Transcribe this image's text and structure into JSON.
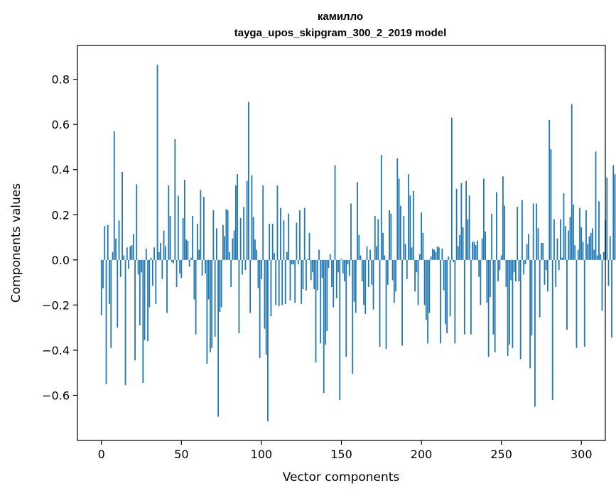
{
  "chart_data": {
    "type": "bar",
    "title": "камилло",
    "subtitle": "tayga_upos_skipgram_300_2_2019 model",
    "xlabel": "Vector components",
    "ylabel": "Components values",
    "xlim": [
      -15,
      315
    ],
    "ylim": [
      -0.8,
      0.95
    ],
    "xticks": [
      0,
      50,
      100,
      150,
      200,
      250,
      300
    ],
    "xtick_labels": [
      "0",
      "50",
      "100",
      "150",
      "200",
      "250",
      "300"
    ],
    "yticks": [
      -0.6,
      -0.4,
      -0.2,
      0.0,
      0.2,
      0.4,
      0.6,
      0.8
    ],
    "ytick_labels": [
      "−0.6",
      "−0.4",
      "−0.2",
      "0.0",
      "0.2",
      "0.4",
      "0.6",
      "0.8"
    ],
    "bar_color": "#1f77b4",
    "values": [
      -0.245,
      -0.125,
      0.15,
      -0.55,
      0.155,
      -0.195,
      -0.39,
      0.035,
      0.57,
      0.095,
      -0.3,
      0.175,
      -0.075,
      0.39,
      0.02,
      -0.555,
      0.055,
      -0.04,
      0.06,
      0.065,
      0.115,
      -0.445,
      0.335,
      -0.065,
      -0.29,
      -0.055,
      -0.545,
      -0.355,
      0.05,
      -0.36,
      -0.21,
      0.01,
      -0.115,
      0.055,
      -0.195,
      0.865,
      0.035,
      0.075,
      -0.085,
      0.13,
      0.06,
      -0.235,
      0.33,
      0.195,
      -0.01,
      -0.015,
      0.535,
      -0.12,
      0.285,
      -0.06,
      -0.08,
      0.185,
      0.355,
      0.09,
      0.085,
      -0.03,
      0.01,
      0.195,
      -0.175,
      -0.33,
      0.16,
      0.045,
      0.31,
      -0.07,
      0.28,
      -0.06,
      -0.46,
      -0.175,
      -0.41,
      -0.39,
      0.22,
      -0.34,
      0.14,
      -0.695,
      -0.23,
      -0.21,
      0.155,
      0.105,
      0.225,
      0.22,
      0.035,
      -0.12,
      0.095,
      0.13,
      0.33,
      0.38,
      -0.325,
      0.185,
      -0.065,
      0.235,
      -0.045,
      0.35,
      0.7,
      -0.235,
      0.375,
      0.19,
      0.09,
      0.045,
      -0.125,
      -0.435,
      -0.085,
      0.33,
      -0.305,
      -0.42,
      -0.715,
      0.16,
      -0.25,
      0.16,
      0.03,
      -0.2,
      0.33,
      -0.205,
      0.23,
      -0.2,
      0.175,
      -0.195,
      0.035,
      0.205,
      -0.18,
      -0.02,
      -0.02,
      -0.19,
      0.165,
      -0.02,
      0.22,
      -0.195,
      -0.13,
      0.23,
      -0.135,
      0.005,
      0.12,
      -0.09,
      -0.055,
      -0.13,
      -0.455,
      -0.135,
      0.045,
      -0.37,
      -0.08,
      -0.59,
      -0.375,
      -0.315,
      -0.035,
      0.025,
      -0.12,
      -0.21,
      0.42,
      -0.17,
      -0.055,
      -0.62,
      0.005,
      -0.06,
      -0.095,
      -0.43,
      -0.02,
      -0.07,
      0.25,
      -0.505,
      -0.185,
      -0.235,
      0.345,
      0.11,
      0.02,
      -0.095,
      -0.2,
      -0.24,
      0.06,
      -0.12,
      0.045,
      -0.11,
      -0.22,
      0.195,
      0.06,
      0.18,
      -0.385,
      0.465,
      0.12,
      0.02,
      -0.395,
      -0.11,
      0.22,
      0.205,
      -0.09,
      -0.19,
      -0.14,
      0.45,
      0.36,
      0.24,
      -0.38,
      0.195,
      0.07,
      -0.085,
      0.38,
      0.285,
      0.055,
      0.305,
      -0.14,
      -0.055,
      -0.2,
      0.025,
      0.21,
      0.12,
      -0.2,
      -0.265,
      -0.37,
      -0.235,
      0.015,
      0.05,
      0.045,
      0.035,
      0.06,
      0.055,
      -0.37,
      0.05,
      -0.135,
      -0.285,
      -0.325,
      0.015,
      -0.25,
      0.63,
      -0.01,
      -0.37,
      0.315,
      0.06,
      0.11,
      0.34,
      0.145,
      -0.33,
      0.35,
      0.18,
      0.285,
      -0.33,
      0.08,
      0.08,
      0.065,
      0.085,
      -0.075,
      -0.2,
      0.095,
      0.36,
      0.125,
      -0.19,
      -0.43,
      -0.165,
      0.205,
      -0.33,
      -0.41,
      0.3,
      -0.095,
      -0.045,
      0.02,
      0.37,
      0.24,
      -0.12,
      -0.425,
      -0.375,
      -0.09,
      -0.39,
      -0.055,
      -0.095,
      0.235,
      -0.095,
      -0.44,
      0.265,
      -0.065,
      -0.02,
      0.07,
      0.115,
      -0.48,
      -0.335,
      0.25,
      -0.65,
      0.25,
      0.14,
      -0.255,
      0.075,
      0.075,
      -0.11,
      -0.045,
      -0.14,
      0.62,
      0.49,
      -0.62,
      0.18,
      -0.12,
      0.095,
      -0.045,
      0.18,
      0.01,
      0.295,
      0.15,
      -0.31,
      0.13,
      0.19,
      0.69,
      0.245,
      0.065,
      -0.39,
      0.045,
      0.23,
      0.145,
      0.08,
      -0.385,
      0.22,
      0.07,
      0.105,
      0.12,
      0.14,
      0.045,
      0.48,
      0.02,
      0.26,
      0.025,
      -0.225,
      0.035,
      0.175,
      0.365,
      -0.115,
      0.105,
      -0.345,
      0.42,
      0.38
    ]
  }
}
